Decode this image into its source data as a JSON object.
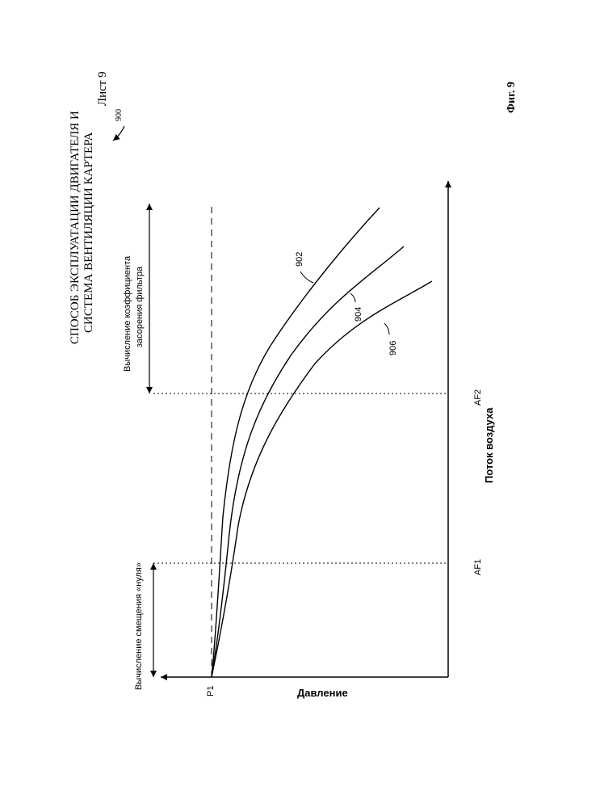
{
  "header": {
    "title_line1": "СПОСОБ ЭКСПЛУАТАЦИИ ДВИГАТЕЛЯ И",
    "title_line2": "СИСТЕМА ВЕНТИЛЯЦИИ КАРТЕРА",
    "sheet": "Лист 9",
    "figure_ref": "900"
  },
  "figure_caption": "Фиг. 9",
  "chart_data": {
    "type": "line",
    "xlabel": "Поток воздуха",
    "ylabel": "Давление",
    "x_ticks": [
      "AF1",
      "AF2"
    ],
    "y_ticks": [
      "P1"
    ],
    "regions": [
      {
        "label": "Вычисление смещения «нуля»",
        "from": "start",
        "to": "AF1"
      },
      {
        "label_line1": "Вычисление коэффициента",
        "label_line2": "засорения фильтра",
        "from": "AF2",
        "to": "end"
      }
    ],
    "reference_line": {
      "style": "dashed",
      "level": "P1"
    },
    "series": [
      {
        "name": "902",
        "x": [
          0,
          0.25,
          0.5,
          0.7,
          0.9,
          1.0
        ],
        "y": [
          0,
          0.03,
          0.12,
          0.3,
          0.55,
          0.7
        ]
      },
      {
        "name": "904",
        "x": [
          0,
          0.25,
          0.5,
          0.7,
          0.9,
          1.0
        ],
        "y": [
          0,
          0.05,
          0.19,
          0.43,
          0.65,
          0.8
        ]
      },
      {
        "name": "906",
        "x": [
          0,
          0.25,
          0.5,
          0.7,
          0.9,
          1.0
        ],
        "y": [
          0,
          0.07,
          0.28,
          0.55,
          0.78,
          0.92
        ]
      }
    ]
  }
}
